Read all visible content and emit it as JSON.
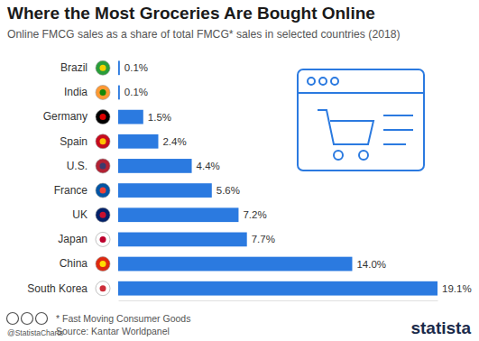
{
  "chart_data": {
    "type": "bar",
    "orientation": "horizontal",
    "title": "Where the Most Groceries Are Bought Online",
    "subtitle": "Online FMCG sales as a share of total FMCG* sales in selected countries (2018)",
    "categories": [
      "Brazil",
      "India",
      "Germany",
      "Spain",
      "U.S.",
      "France",
      "UK",
      "Japan",
      "China",
      "South Korea"
    ],
    "values": [
      0.1,
      0.1,
      1.5,
      2.4,
      4.4,
      5.6,
      7.2,
      7.7,
      14.0,
      19.1
    ],
    "value_labels": [
      "0.1%",
      "0.1%",
      "1.5%",
      "2.4%",
      "4.4%",
      "5.6%",
      "7.2%",
      "7.7%",
      "14.0%",
      "19.1%"
    ],
    "color": "#2b7ae0",
    "xlim": [
      0,
      19.1
    ],
    "xticks": [],
    "tick_labels": "y",
    "data_labels": true,
    "grid": false,
    "annotations": [
      "* Fast Moving Consumer Goods",
      "Source: Kantar Worldpanel",
      "@StatistaCharts",
      "statista"
    ]
  }
}
